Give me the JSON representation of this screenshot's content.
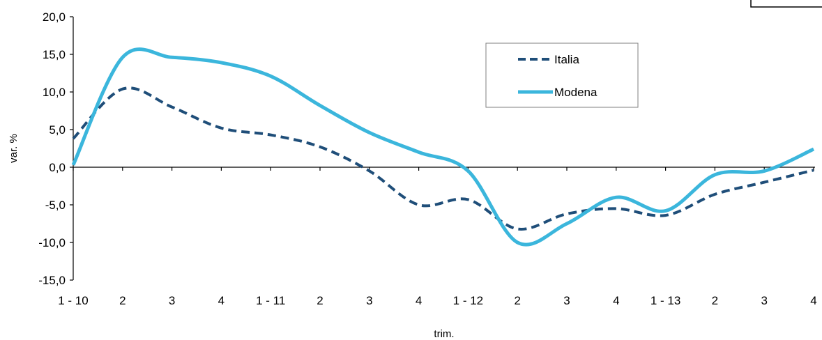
{
  "chart_data": {
    "type": "line",
    "xlabel": "trim.",
    "ylabel": "var. %",
    "ylim": [
      -15,
      20
    ],
    "yticks": [
      20,
      15,
      10,
      5,
      0,
      -5,
      -10,
      -15
    ],
    "ytick_labels": [
      "20,0",
      "15,0",
      "10,0",
      "5,0",
      "0,0",
      "-5,0",
      "-10,0",
      "-15,0"
    ],
    "categories": [
      "1 - 10",
      "2",
      "3",
      "4",
      "1 - 11",
      "2",
      "3",
      "4",
      "1 - 12",
      "2",
      "3",
      "4",
      "1 - 13",
      "2",
      "3",
      "4"
    ],
    "series": [
      {
        "name": "Italia",
        "color": "#1f4e79",
        "style": "dashed",
        "values": [
          3.8,
          10.4,
          8.0,
          5.2,
          4.3,
          2.7,
          -0.5,
          -5.0,
          -4.3,
          -8.2,
          -6.2,
          -5.5,
          -6.4,
          -3.6,
          -2.0,
          -0.4
        ]
      },
      {
        "name": "Modena",
        "color": "#3bb6dc",
        "style": "solid",
        "values": [
          0.3,
          14.6,
          14.6,
          13.9,
          12.1,
          8.2,
          4.6,
          2.0,
          -0.5,
          -10.0,
          -7.5,
          -4.0,
          -5.8,
          -1.0,
          -0.5,
          2.4
        ]
      }
    ],
    "legend": {
      "position": "top-right",
      "bordered": true
    },
    "grid": false
  }
}
